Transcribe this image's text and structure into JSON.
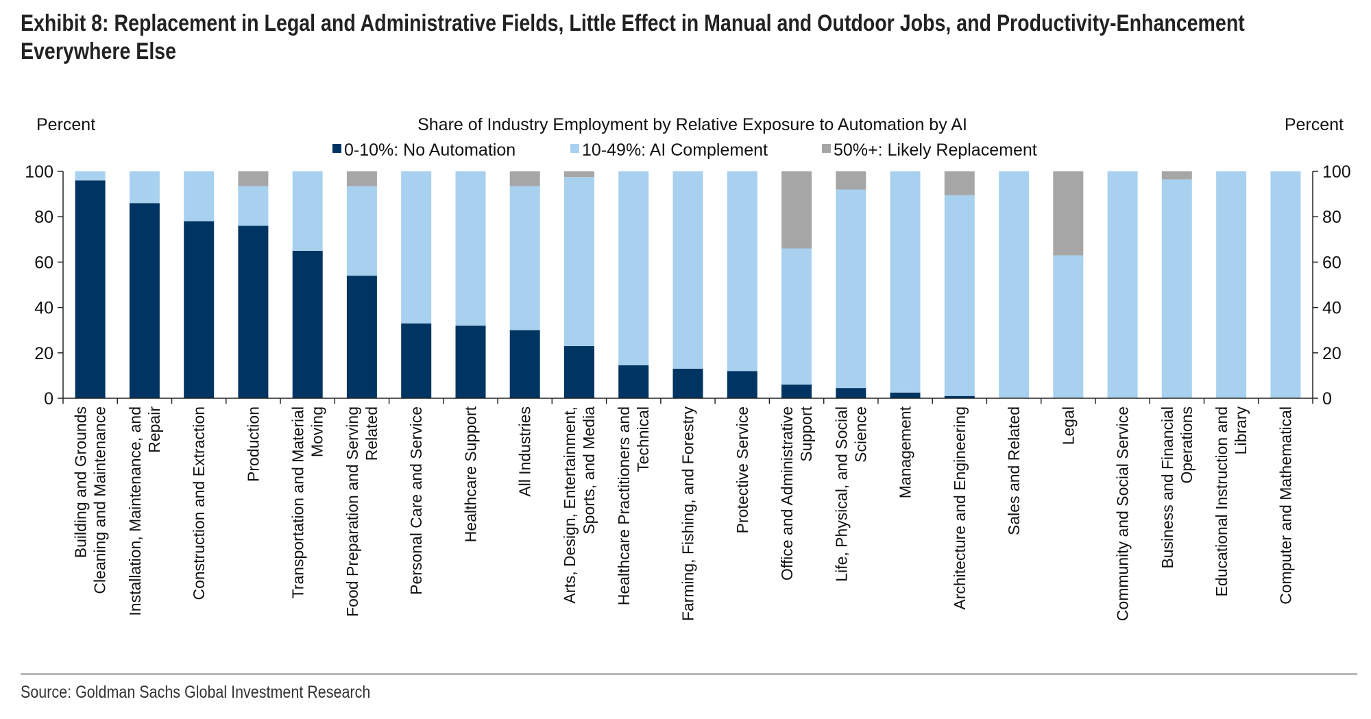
{
  "exhibit": {
    "title_line1": "Exhibit 8: Replacement in Legal and Administrative Fields, Little Effect in Manual and Outdoor Jobs, and Productivity-Enhancement",
    "title_line2": "Everywhere Else",
    "source": "Source: Goldman Sachs Global Investment Research"
  },
  "colors": {
    "no_automation": "#003462",
    "ai_complement": "#a8d1ef",
    "likely_replacement": "#a6a6a6",
    "text": "#111111",
    "axis": "#222222"
  },
  "chart_data": {
    "type": "bar",
    "stacked": true,
    "title": "Share of Industry Employment by Relative Exposure to Automation by AI",
    "ylabel_left": "Percent",
    "ylabel_right": "Percent",
    "ylim": [
      0,
      100
    ],
    "yticks": [
      0,
      20,
      40,
      60,
      80,
      100
    ],
    "legend_position": "top-center",
    "grid": false,
    "categories": [
      [
        "Building and Grounds",
        "Cleaning and Maintenance"
      ],
      [
        "Installation, Maintenance, and",
        "Repair"
      ],
      [
        "Construction and Extraction"
      ],
      [
        "Production"
      ],
      [
        "Transportation and Material",
        "Moving"
      ],
      [
        "Food Preparation and Serving",
        "Related"
      ],
      [
        "Personal Care and Service"
      ],
      [
        "Healthcare Support"
      ],
      [
        "All Industries"
      ],
      [
        "Arts, Design, Entertainment,",
        "Sports, and Media"
      ],
      [
        "Healthcare Practitioners and",
        "Technical"
      ],
      [
        "Farming, Fishing, and Forestry"
      ],
      [
        "Protective Service"
      ],
      [
        "Office and Administrative",
        "Support"
      ],
      [
        "Life, Physical, and Social",
        "Science"
      ],
      [
        "Management"
      ],
      [
        "Architecture and Engineering"
      ],
      [
        "Sales and Related"
      ],
      [
        "Legal"
      ],
      [
        "Community and Social Service"
      ],
      [
        "Business and Financial",
        "Operations"
      ],
      [
        "Educational Instruction and",
        "Library"
      ],
      [
        "Computer and Mathematical"
      ]
    ],
    "series": [
      {
        "name": "0-10%: No Automation",
        "values": [
          96,
          86,
          78,
          76,
          65,
          54,
          33,
          32,
          30,
          23,
          14.5,
          13,
          12,
          6,
          4.5,
          2.5,
          1,
          0,
          0,
          0,
          0,
          0,
          0
        ]
      },
      {
        "name": "10-49%: AI Complement",
        "values": [
          4,
          14,
          22,
          17.5,
          35,
          39.5,
          67,
          68,
          63.5,
          74.5,
          85.5,
          87,
          88,
          60,
          87.5,
          97.5,
          88.5,
          100,
          63,
          100,
          96.5,
          100,
          100
        ]
      },
      {
        "name": "50%+: Likely Replacement",
        "values": [
          0,
          0,
          0,
          6.5,
          0,
          6.5,
          0,
          0,
          6.5,
          2.5,
          0,
          0,
          0,
          34,
          8,
          0,
          10.5,
          0,
          37,
          0,
          3.5,
          0,
          0
        ]
      }
    ]
  }
}
